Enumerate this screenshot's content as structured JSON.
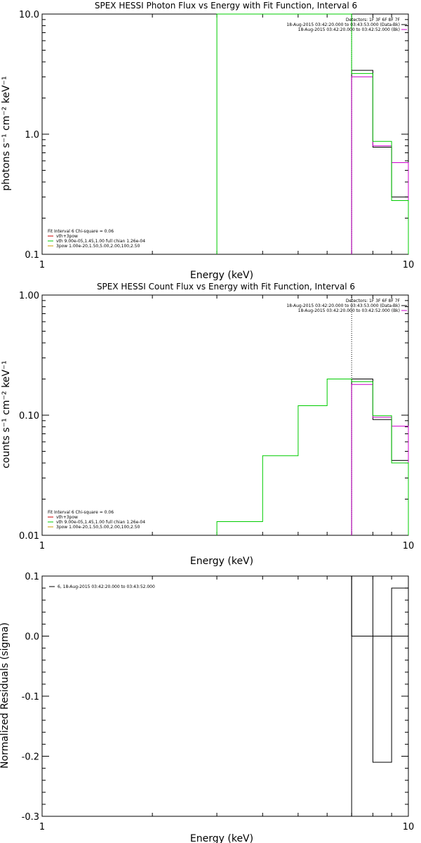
{
  "chart_data": [
    {
      "type": "line",
      "title": "SPEX HESSI Photon Flux vs Energy with Fit Function, Interval 6",
      "xlabel": "Energy (keV)",
      "ylabel": "photons s⁻¹ cm⁻² keV⁻¹",
      "xscale": "log",
      "yscale": "log",
      "xlim": [
        1,
        10
      ],
      "ylim": [
        0.1,
        10
      ],
      "xticks": [
        {
          "v": 1,
          "label": "1"
        },
        {
          "v": 10,
          "label": "10"
        }
      ],
      "yticks": [
        {
          "v": 0.1,
          "label": "0.1"
        },
        {
          "v": 1,
          "label": "1.0"
        },
        {
          "v": 10,
          "label": "10.0"
        }
      ],
      "legend_tr": [
        "Detectors: 1F 3F 6F 8F 7F",
        "18-Aug-2015 03:42:20.000 to 03:43:53.000 (Data-Bk)",
        "18-Aug-2015 03:42:20.000 to 03:42:52.000 (Bk)"
      ],
      "legend_bl": [
        "Fit Interval 6   Chi-square = 0.06",
        "vth+3pow",
        "vth 9.00e-05,1.45,1.00  full chian 1.26e-04",
        "3pow 1.00e-20,1.50,5.00,2.00,100,2.50"
      ],
      "bin_edges": [
        3,
        4,
        5,
        6,
        7,
        8,
        9,
        10
      ],
      "series": [
        {
          "name": "data",
          "color": "#000000",
          "values": [
            null,
            null,
            null,
            null,
            3.4,
            0.78,
            0.3
          ]
        },
        {
          "name": "bk",
          "color": "#cc00cc",
          "values": [
            null,
            null,
            null,
            null,
            3.0,
            0.8,
            0.58
          ]
        },
        {
          "name": "model",
          "color": "#00cc00",
          "values": [
            10,
            10,
            10,
            10,
            3.2,
            0.87,
            0.28
          ]
        }
      ],
      "vline": 7
    },
    {
      "type": "line",
      "title": "SPEX HESSI Count Flux vs Energy with Fit Function, Interval 6",
      "xlabel": "Energy (keV)",
      "ylabel": "counts s⁻¹ cm⁻² keV⁻¹",
      "xscale": "log",
      "yscale": "log",
      "xlim": [
        1,
        10
      ],
      "ylim": [
        0.01,
        1
      ],
      "xticks": [
        {
          "v": 1,
          "label": "1"
        },
        {
          "v": 10,
          "label": "10"
        }
      ],
      "yticks": [
        {
          "v": 0.01,
          "label": "0.01"
        },
        {
          "v": 0.1,
          "label": "0.10"
        },
        {
          "v": 1,
          "label": "1.00"
        }
      ],
      "legend_tr": [
        "Detectors: 1F 3F 6F 8F 7F",
        "18-Aug-2015 03:42:20.000 to 03:43:53.000 (Data-Bk)",
        "18-Aug-2015 03:42:20.000 to 03:42:52.000 (Bk)"
      ],
      "legend_bl": [
        "Fit Interval 6   Chi-square = 0.06",
        "vth+3pow",
        "vth 9.00e-05,1.45,1.00  full chian 1.26e-04",
        "3pow 1.00e-20,1.50,5.00,2.00,100,2.50"
      ],
      "bin_edges": [
        3,
        4,
        5,
        6,
        7,
        8,
        9,
        10
      ],
      "series": [
        {
          "name": "data",
          "color": "#000000",
          "values": [
            null,
            null,
            null,
            null,
            0.2,
            0.092,
            0.042
          ]
        },
        {
          "name": "bk",
          "color": "#cc00cc",
          "values": [
            null,
            null,
            null,
            null,
            0.18,
            0.096,
            0.081
          ]
        },
        {
          "name": "model",
          "color": "#00cc00",
          "values": [
            0.013,
            0.046,
            0.12,
            0.2,
            0.19,
            0.099,
            0.04
          ]
        }
      ],
      "vline": 7
    },
    {
      "type": "bar",
      "title": "",
      "xlabel": "Energy (keV)",
      "ylabel": "Normalized Residuals (sigma)",
      "xscale": "log",
      "yscale": "linear",
      "xlim": [
        1,
        10
      ],
      "ylim": [
        -0.3,
        0.1
      ],
      "xticks": [
        {
          "v": 1,
          "label": "1"
        },
        {
          "v": 10,
          "label": "10"
        }
      ],
      "yticks": [
        {
          "v": 0.1,
          "label": "0.1"
        },
        {
          "v": 0,
          "label": "0.0"
        },
        {
          "v": -0.1,
          "label": "-0.1"
        },
        {
          "v": -0.2,
          "label": "-0.2"
        },
        {
          "v": -0.3,
          "label": "-0.3"
        }
      ],
      "legend_tl": "6, 18-Aug-2015 03:42:20.000 to 03:43:52.000",
      "bin_edges": [
        7,
        8,
        9,
        10
      ],
      "values": [
        0.1,
        -0.21,
        0.08
      ]
    }
  ]
}
